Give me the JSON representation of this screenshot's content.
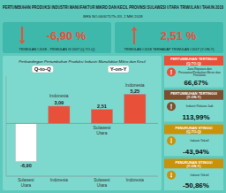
{
  "title": "PERTUMBUHAN PRODUKSI INDUSTRI MANUFAKTUR MIKRO DAN KECIL PROVINSI SULAWESI UTARA TRIWULAN I TAHUN 2018",
  "subtitle": "BRS NO.06/6/71/Th.XII, 2 MEI 2018",
  "background": "#5dc9bc",
  "header_color": "#3db8ab",
  "panel_background": "#7dd8ce",
  "headers": [
    {
      "value": -6.9,
      "value_label": "-6,90 %",
      "label": "TRIWULAN I 2018 - TRIWULAN IV 2017 (Q-TO-Q)",
      "color": "#e8503a"
    },
    {
      "value": 2.51,
      "value_label": "2,51 %",
      "label": "TRIWULAN I 2018 TERHADAP TRIWULAN I 2017 (Y-ON-Y)",
      "color": "#e8503a"
    }
  ],
  "chart_data": {
    "type": "bar",
    "title": "Perbandingan Pertumbuhan Produksi Industri Manufaktur Mikro dan Kecil",
    "categories": [
      "Sulawesi\nUtara",
      "Indonesia",
      "Sulawesi\nUtara",
      "Indonesia"
    ],
    "values": [
      -6.9,
      3.09,
      2.51,
      5.25
    ],
    "value_labels": [
      "-6,90",
      "3,09",
      "2,51",
      "5,25"
    ],
    "data_labels": true,
    "colors": [
      "#ffffff",
      "#e8503a",
      "#e8503a",
      "#e8503a"
    ],
    "ylim": [
      -9.5,
      8.5
    ],
    "tick_labels": "x",
    "grid": false,
    "group_labels": [
      "Q-to-Q",
      "Y-on-Y"
    ],
    "annotations": [
      {
        "text": "Indonesia",
        "index": 1,
        "y": 4.5
      },
      {
        "text": "Sulawesi\nUtara",
        "index": 2,
        "y": -0.3
      },
      {
        "text": "Indonesia",
        "index": 3,
        "y": 6.5
      }
    ]
  },
  "panels": [
    {
      "title": "PERTUMBUHAN TERTINGGI\n(Q-TO-Q)",
      "subtitle": "Jasa Reparasi dan\nPerawatan/Perbaikan Mesin dan\nPeralatan",
      "value": 66.67,
      "value_label": "66,67%",
      "color": "#e8503a"
    },
    {
      "title": "PERTUMBUHAN TERTINGGI\n(Y-ON-Y)",
      "subtitle": "Industri Pakaian Jadi",
      "value": 113.99,
      "value_label": "113,99%",
      "color": "#7d4f2e"
    },
    {
      "title": "PENURUNAN STINGGI\n(Q-TO-Q)",
      "subtitle": "Industri Tekstil",
      "value": -43.94,
      "value_label": "-43,94%",
      "color": "#c8920a"
    },
    {
      "title": "PENURUNAN STINGGI\n(Y-ON-Y)",
      "subtitle": "Industri Tekstil",
      "value": -50.86,
      "value_label": "-50,86%",
      "color": "#c8920a"
    }
  ]
}
